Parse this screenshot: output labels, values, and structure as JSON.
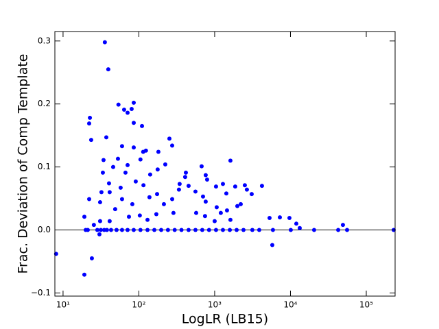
{
  "chart_data": {
    "type": "scatter",
    "xlabel": "LogLR (LB15)",
    "ylabel": "Frac. Deviation of Comp Template",
    "xscale": "log",
    "color": "#0000ff",
    "hline": 0,
    "xlim": [
      7.8,
      240000
    ],
    "ylim": [
      -0.105,
      0.315
    ],
    "xticks": [
      {
        "value": 10,
        "label": "10¹"
      },
      {
        "value": 100,
        "label": "10²"
      },
      {
        "value": 1000,
        "label": "10³"
      },
      {
        "value": 10000,
        "label": "10⁴"
      },
      {
        "value": 100000,
        "label": "10⁵"
      }
    ],
    "yticks": [
      {
        "value": -0.1,
        "label": "−0.1"
      },
      {
        "value": 0,
        "label": "0.0"
      },
      0.1,
      0.2,
      0.3
    ],
    "x": [
      8.1,
      19.1,
      24,
      35.6,
      39.5,
      53.8,
      85.6,
      63.9,
      71,
      80.3,
      85.6,
      110,
      22.1,
      22.6,
      23.5,
      37.2,
      60,
      85.6,
      114,
      124,
      181,
      253,
      275,
      1614,
      673,
      34.2,
      53,
      71,
      45.8,
      105,
      177,
      223,
      408,
      417,
      762,
      795,
      1042,
      1285,
      1866,
      2500,
      4207,
      1425,
      2661,
      3080,
      1990,
      2208,
      1455,
      1064,
      762,
      702,
      558,
      453,
      345,
      338,
      275,
      214,
      174,
      138,
      141,
      115,
      91,
      66.6,
      57.5,
      40.4,
      41.2,
      32.1,
      33.5,
      22.1,
      30.8,
      48.7,
      60,
      82,
      103,
      170,
      286,
      570,
      746,
      1000,
      1205,
      1614,
      5297,
      7244,
      9690,
      11940,
      13250,
      49200,
      5754,
      19.1,
      25.5,
      30.8,
      41.2,
      74,
      130,
      30.2,
      19.9,
      21.2,
      28.3,
      31.5,
      34.9,
      37.9,
      43,
      50.8,
      60,
      71,
      85.6,
      105,
      130,
      160,
      197,
      242,
      297,
      365,
      453,
      558,
      686,
      843,
      1042,
      1285,
      1585,
      1950,
      2400,
      3140,
      3870,
      5870,
      10100,
      20500,
      42600,
      55800,
      230000
    ],
    "values": [
      -0.038,
      -0.071,
      -0.045,
      0.298,
      0.255,
      0.199,
      0.202,
      0.191,
      0.186,
      0.192,
      0.17,
      0.165,
      0.169,
      0.178,
      0.143,
      0.147,
      0.133,
      0.131,
      0.124,
      0.126,
      0.124,
      0.145,
      0.134,
      0.11,
      0.101,
      0.111,
      0.113,
      0.103,
      0.1,
      0.112,
      0.096,
      0.104,
      0.084,
      0.091,
      0.087,
      0.08,
      0.069,
      0.073,
      0.069,
      0.071,
      0.07,
      0.058,
      0.064,
      0.057,
      0.038,
      0.041,
      0.031,
      0.036,
      0.045,
      0.053,
      0.061,
      0.07,
      0.073,
      0.064,
      0.049,
      0.041,
      0.057,
      0.052,
      0.088,
      0.071,
      0.077,
      0.091,
      0.067,
      0.074,
      0.06,
      0.06,
      0.091,
      0.049,
      0.044,
      0.033,
      0.049,
      0.041,
      0.023,
      0.025,
      0.027,
      0.027,
      0.022,
      0.014,
      0.027,
      0.016,
      0.019,
      0.02,
      0.019,
      0.01,
      0.003,
      0.008,
      -0.024,
      0.021,
      0.008,
      0.014,
      0.014,
      0.021,
      0.016,
      -0.007,
      0,
      0,
      0,
      0,
      0,
      0,
      0,
      0,
      0,
      0,
      0,
      0,
      0,
      0,
      0,
      0,
      0,
      0,
      0,
      0,
      0,
      0,
      0,
      0,
      0,
      0,
      0,
      0,
      0,
      0,
      0,
      0,
      0,
      0,
      0
    ]
  }
}
